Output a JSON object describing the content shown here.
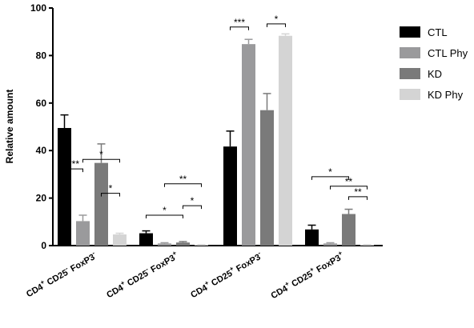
{
  "chart_data": {
    "type": "bar",
    "ylabel": "Relative amount",
    "ylim": [
      0,
      100
    ],
    "yticks": [
      "0",
      "20",
      "40",
      "60",
      "80",
      "100"
    ],
    "categories": [
      {
        "base": "CD4",
        "parts": [
          [
            "+",
            " CD25"
          ],
          [
            "-",
            " FoxP3"
          ],
          [
            "-",
            ""
          ]
        ]
      },
      {
        "base": "CD4",
        "parts": [
          [
            "+",
            " CD25"
          ],
          [
            "-",
            " FoxP3"
          ],
          [
            "+",
            ""
          ]
        ]
      },
      {
        "base": "CD4",
        "parts": [
          [
            "+",
            " CD25"
          ],
          [
            "+",
            " FoxP3"
          ],
          [
            "-",
            ""
          ]
        ]
      },
      {
        "base": "CD4",
        "parts": [
          [
            "+",
            " CD25"
          ],
          [
            "+",
            " FoxP3"
          ],
          [
            "+",
            ""
          ]
        ]
      }
    ],
    "series": [
      {
        "name": "CTL",
        "color": "#000000",
        "values": [
          49.5,
          5.2,
          41.7,
          6.8
        ],
        "errors": [
          5.5,
          1.0,
          6.5,
          1.8
        ]
      },
      {
        "name": "CTL Phy",
        "color": "#9a9a9c",
        "values": [
          10.3,
          0.9,
          84.8,
          0.9
        ],
        "errors": [
          2.5,
          0.3,
          2.0,
          0.3
        ]
      },
      {
        "name": "KD",
        "color": "#7a7a7a",
        "values": [
          34.8,
          1.3,
          57.0,
          13.3
        ],
        "errors": [
          8.0,
          0.4,
          7.0,
          2.0
        ]
      },
      {
        "name": "KD Phy",
        "color": "#d4d4d4",
        "values": [
          4.7,
          0.3,
          88.3,
          0.3
        ],
        "errors": [
          0.5,
          0.1,
          0.8,
          0.1
        ]
      }
    ],
    "significance": [
      {
        "group": 0,
        "from": 0,
        "to": 1,
        "label": "***"
      },
      {
        "group": 0,
        "from": 1,
        "to": 3,
        "label": "*"
      },
      {
        "group": 0,
        "from": 2,
        "to": 3,
        "label": "*"
      },
      {
        "group": 1,
        "from": 1,
        "to": 3,
        "label": "**"
      },
      {
        "group": 1,
        "from": 0,
        "to": 2,
        "label": "*"
      },
      {
        "group": 1,
        "from": 2,
        "to": 3,
        "label": "*"
      },
      {
        "group": 2,
        "from": 0,
        "to": 1,
        "label": "***"
      },
      {
        "group": 2,
        "from": 2,
        "to": 3,
        "label": "*"
      },
      {
        "group": 3,
        "from": 1,
        "to": 3,
        "label": "**"
      },
      {
        "group": 3,
        "from": 0,
        "to": 2,
        "label": "*"
      },
      {
        "group": 3,
        "from": 2,
        "to": 3,
        "label": "**"
      }
    ],
    "sig_levels": [
      32.3,
      36.3,
      22.0,
      26.0,
      12.8,
      16.8,
      92.0,
      93.3,
      25.0,
      29.0,
      20.6
    ],
    "legend_position": "right",
    "grid": false
  }
}
